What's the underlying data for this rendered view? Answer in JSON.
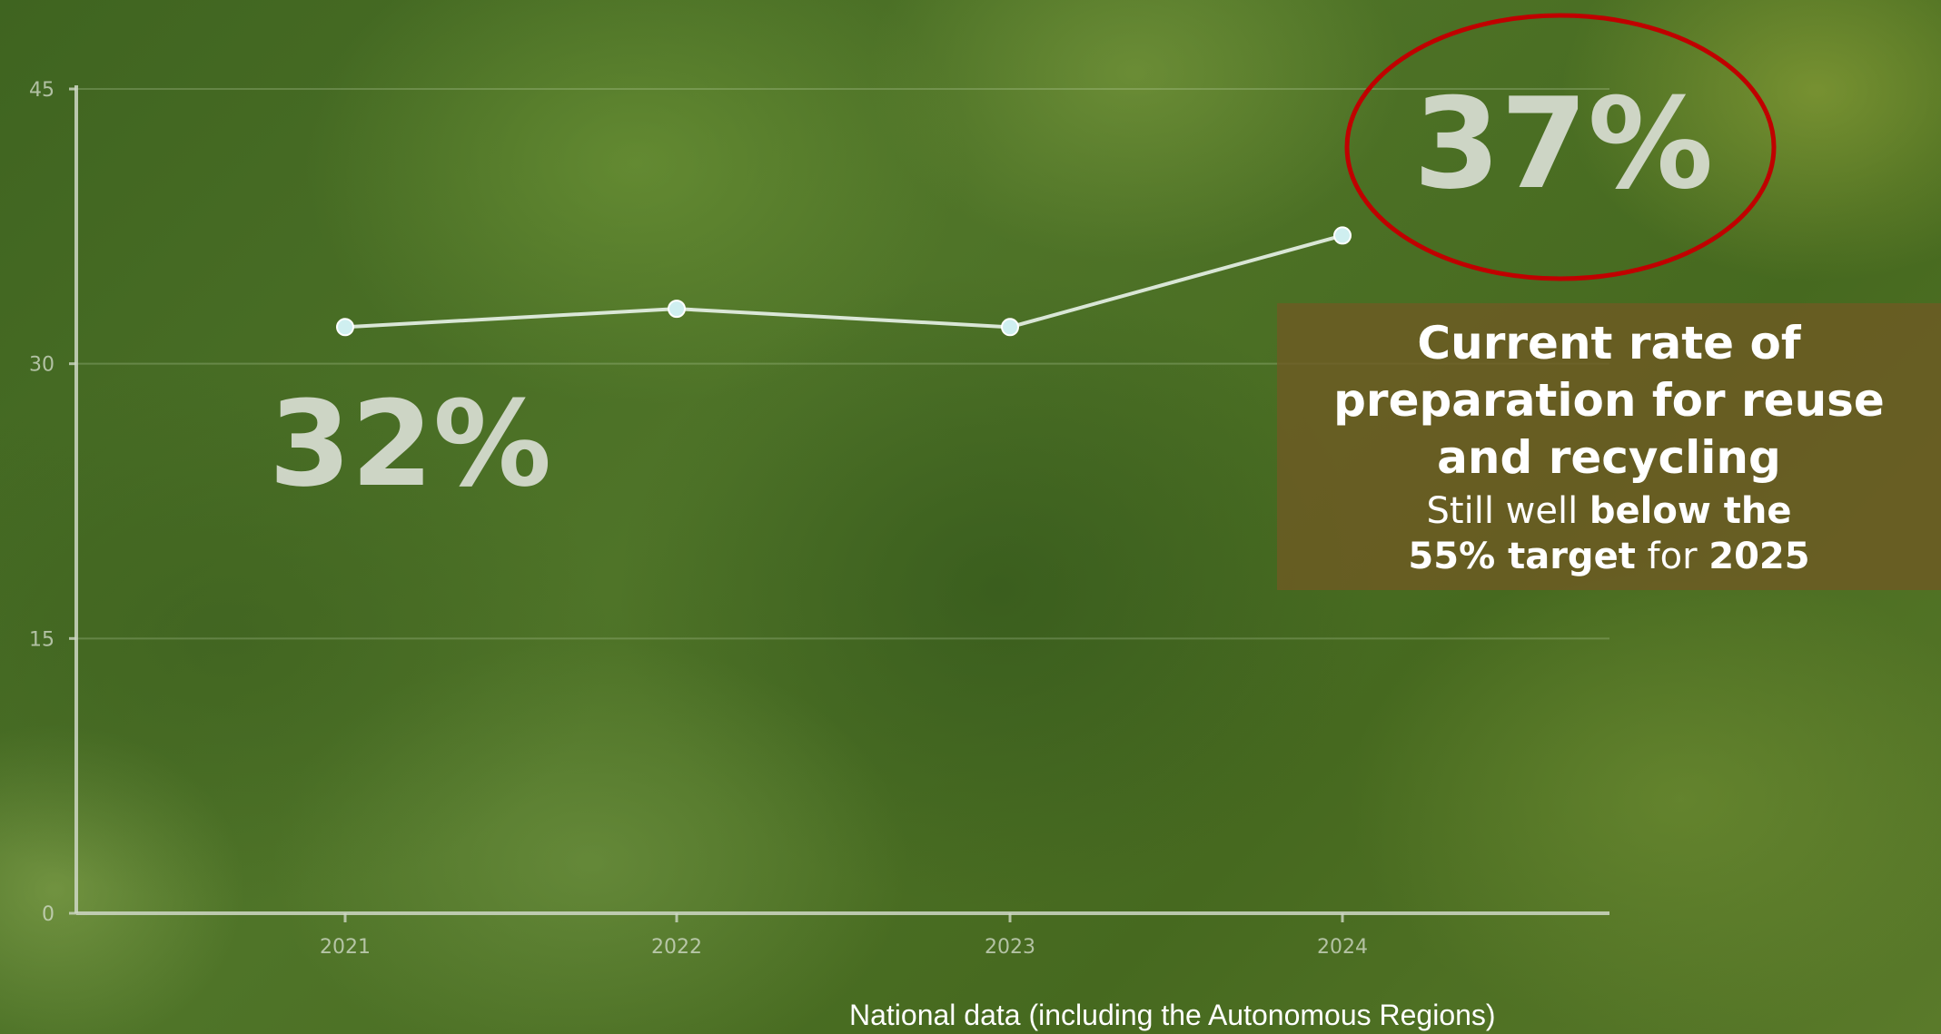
{
  "chart_data": {
    "type": "line",
    "x": [
      "2021",
      "2022",
      "2023",
      "2024"
    ],
    "series": [
      {
        "values": [
          32,
          33,
          32,
          37
        ]
      }
    ],
    "ylim": [
      0,
      45
    ],
    "yticks": [
      "0",
      "15",
      "30",
      "45"
    ],
    "grid": true,
    "annotations": {
      "start_value": "32%",
      "end_value": "37%"
    },
    "colors": {
      "line": "#e9f3ea",
      "marker": "#cfeff0",
      "axis": "#cfd8c6",
      "highlight_circle": "#c00000"
    }
  },
  "info": {
    "title": "Current rate of preparation for reuse and recycling",
    "sub_1": "Still well ",
    "sub_2": "below the",
    "sub_3": "55% target",
    "sub_4": " for ",
    "sub_5": "2025"
  },
  "footnote": "National data (including the Autonomous Regions)"
}
